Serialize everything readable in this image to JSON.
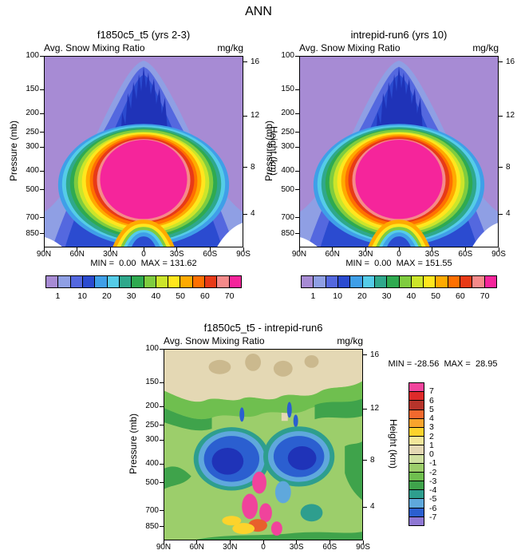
{
  "page_title": "ANN",
  "panels": [
    {
      "title": "f1850c5_t5 (yrs 2-3)",
      "subtitle": "Avg. Snow Mixing Ratio",
      "units": "mg/kg",
      "stats": "MIN =  0.00  MAX = 131.62"
    },
    {
      "title": "intrepid-run6 (yrs 10)",
      "subtitle": "Avg. Snow Mixing Ratio",
      "units": "mg/kg",
      "stats": "MIN =  0.00  MAX = 151.55"
    },
    {
      "title": "f1850c5_t5 - intrepid-run6",
      "subtitle": "Avg. Snow Mixing Ratio",
      "units": "mg/kg",
      "stats": "MIN = -28.56  MAX =  28.95"
    }
  ],
  "axes": {
    "pressure_label": "Pressure (mb)",
    "pressure_ticks": [
      "100",
      "150",
      "200",
      "250",
      "300",
      "400",
      "500",
      "700",
      "850"
    ],
    "height_label": "Height (km)",
    "height_ticks": [
      "16",
      "12",
      "8",
      "4"
    ],
    "lat_ticks": [
      "90N",
      "60N",
      "30N",
      "0",
      "30S",
      "60S",
      "90S"
    ]
  },
  "colorbar_top": {
    "labels": [
      "1",
      "10",
      "20",
      "30",
      "40",
      "50",
      "60",
      "70"
    ],
    "colors": [
      "#A78BD4",
      "#8F9FE4",
      "#5468DF",
      "#2B4BD0",
      "#3F9FE8",
      "#55CCE8",
      "#2FA88C",
      "#2FAA50",
      "#7FCC3F",
      "#CCE52A",
      "#FFE61E",
      "#FFAA00",
      "#FF7000",
      "#E83A17",
      "#F58A8A",
      "#F5259B"
    ]
  },
  "colorbar_diff": {
    "labels": [
      "7",
      "6",
      "5",
      "4",
      "3",
      "2",
      "1",
      "0",
      "-1",
      "-2",
      "-3",
      "-4",
      "-5",
      "-6",
      "-7"
    ],
    "colors": [
      "#F0439C",
      "#DE2A2A",
      "#B6342B",
      "#F2692E",
      "#F9A42C",
      "#FCD32C",
      "#F2E69A",
      "#E4D8B4",
      "#CFE0A0",
      "#9CCE6B",
      "#6FBF4F",
      "#3FA34B",
      "#2E9E8E",
      "#5FA8DC",
      "#2B5FD0",
      "#8F78D4"
    ]
  },
  "chart_data": [
    {
      "type": "heatmap",
      "title": "f1850c5_t5 (yrs 2-3)",
      "variable": "Avg. Snow Mixing Ratio",
      "units": "mg/kg",
      "season": "ANN",
      "x_axis": {
        "ticks": [
          "90N",
          "60N",
          "30N",
          "0",
          "30S",
          "60S",
          "90S"
        ]
      },
      "y_axis": {
        "label": "Pressure (mb)",
        "ticks": [
          100,
          150,
          200,
          250,
          300,
          400,
          500,
          700,
          850
        ],
        "scale": "log",
        "direction": "down"
      },
      "y2_axis": {
        "label": "Height (km)",
        "ticks": [
          16,
          12,
          8,
          4
        ]
      },
      "contour_level_labels": [
        1,
        10,
        20,
        30,
        40,
        50,
        60,
        70
      ],
      "min": 0.0,
      "max": 131.62,
      "description": "Maximum snow mixing ratio (magenta, >70 mg/kg) centered near the equator around 400-500 mb, decreasing outward through red/orange/yellow/green/blue rings to purple (<1) at high latitudes and upper levels"
    },
    {
      "type": "heatmap",
      "title": "intrepid-run6 (yrs 10)",
      "variable": "Avg. Snow Mixing Ratio",
      "units": "mg/kg",
      "season": "ANN",
      "x_axis": {
        "ticks": [
          "90N",
          "60N",
          "30N",
          "0",
          "30S",
          "60S",
          "90S"
        ]
      },
      "y_axis": {
        "label": "Pressure (mb)",
        "ticks": [
          100,
          150,
          200,
          250,
          300,
          400,
          500,
          700,
          850
        ],
        "scale": "log",
        "direction": "down"
      },
      "y2_axis": {
        "label": "Height (km)",
        "ticks": [
          16,
          12,
          8,
          4
        ]
      },
      "contour_level_labels": [
        1,
        10,
        20,
        30,
        40,
        50,
        60,
        70
      ],
      "min": 0.0,
      "max": 151.55,
      "description": "Same structure as case 1 with slightly larger maximum"
    },
    {
      "type": "heatmap",
      "title": "f1850c5_t5 - intrepid-run6",
      "variable": "Avg. Snow Mixing Ratio difference",
      "units": "mg/kg",
      "season": "ANN",
      "x_axis": {
        "ticks": [
          "90N",
          "60N",
          "30N",
          "0",
          "30S",
          "60S",
          "90S"
        ]
      },
      "y_axis": {
        "label": "Pressure (mb)",
        "ticks": [
          100,
          150,
          200,
          250,
          300,
          400,
          500,
          700,
          850
        ],
        "scale": "log",
        "direction": "down"
      },
      "y2_axis": {
        "label": "Height (km)",
        "ticks": [
          16,
          12,
          8,
          4
        ]
      },
      "contour_level_labels": [
        7,
        6,
        5,
        4,
        3,
        2,
        1,
        0,
        -1,
        -2,
        -3,
        -4,
        -5,
        -6,
        -7
      ],
      "min": -28.56,
      "max": 28.95,
      "description": "Tan near-zero band aloft, light-green weak negative background, strong negative (blue) lobes near 400-500 mb flanking the equator, positive (pink/red) patches near the equator below 500 mb"
    }
  ]
}
